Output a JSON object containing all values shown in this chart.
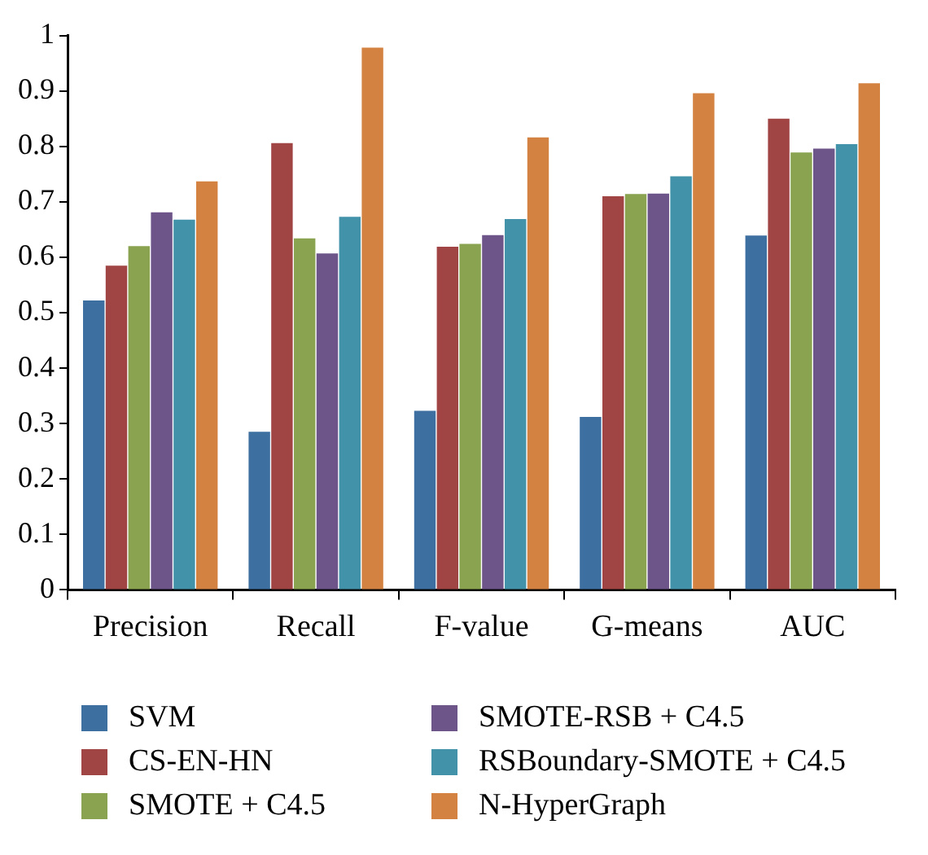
{
  "chart_data": {
    "type": "bar",
    "categories": [
      "Precision",
      "Recall",
      "F-value",
      "G-means",
      "AUC"
    ],
    "series": [
      {
        "name": "SVM",
        "color": "#3d6fa0",
        "values": [
          0.522,
          0.285,
          0.323,
          0.312,
          0.639
        ]
      },
      {
        "name": "CS-EN-HN",
        "color": "#a04444",
        "values": [
          0.585,
          0.806,
          0.619,
          0.71,
          0.85
        ]
      },
      {
        "name": "SMOTE + C4.5",
        "color": "#89a350",
        "values": [
          0.62,
          0.634,
          0.624,
          0.714,
          0.789
        ]
      },
      {
        "name": "SMOTE-RSB + C4.5",
        "color": "#6d558a",
        "values": [
          0.681,
          0.607,
          0.64,
          0.715,
          0.796
        ]
      },
      {
        "name": "RSBoundary-SMOTE + C4.5",
        "color": "#4293aa",
        "values": [
          0.668,
          0.673,
          0.669,
          0.746,
          0.804
        ]
      },
      {
        "name": "N-HyperGraph",
        "color": "#d38241",
        "values": [
          0.737,
          0.978,
          0.816,
          0.896,
          0.914
        ]
      }
    ],
    "ylim": [
      0,
      1
    ],
    "yticks": [
      0,
      0.1,
      0.2,
      0.3,
      0.4,
      0.5,
      0.6,
      0.7,
      0.8,
      0.9,
      1
    ],
    "grid": false,
    "legend": "bottom"
  }
}
